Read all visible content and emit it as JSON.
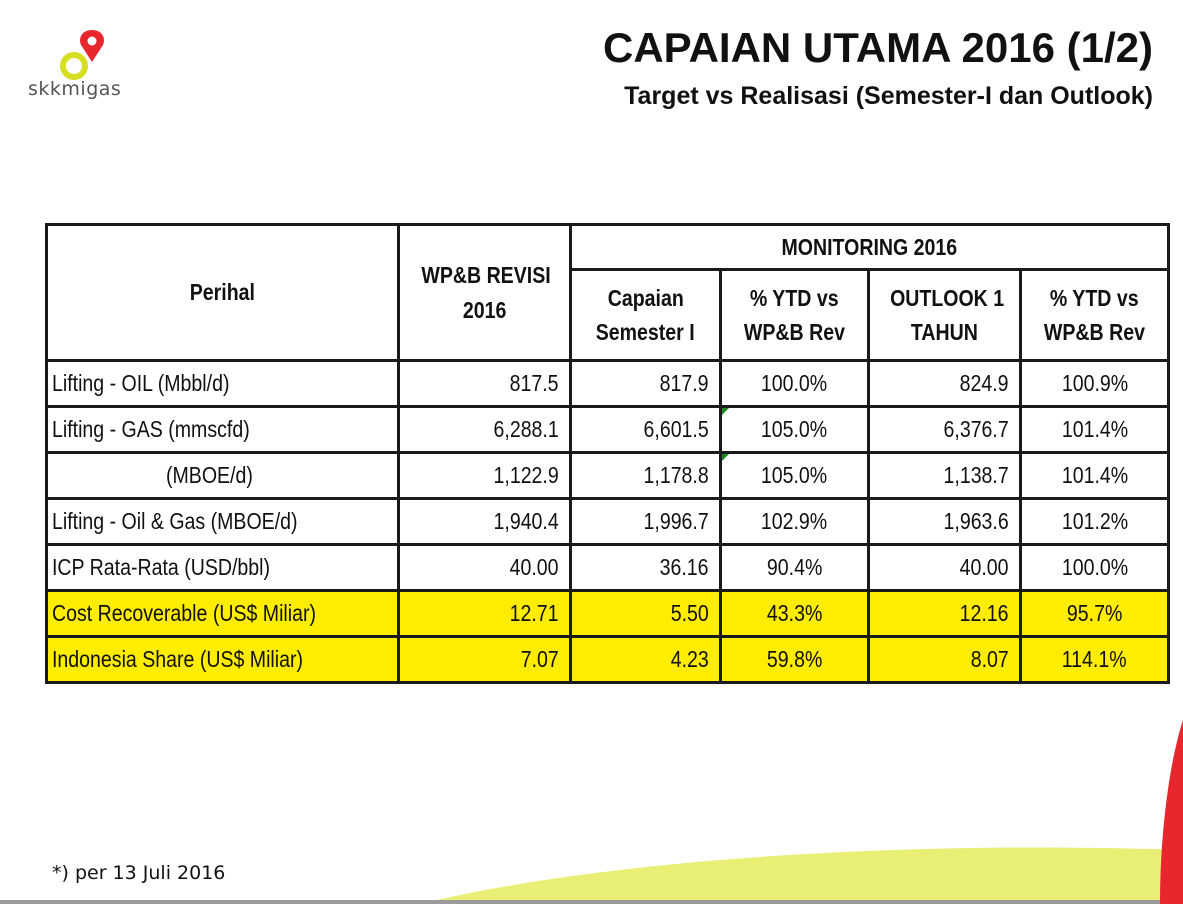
{
  "logo": {
    "text": "skkmigas"
  },
  "header": {
    "title": "CAPAIAN UTAMA 2016 (1/2)",
    "subtitle": "Target vs Realisasi (Semester-I dan Outlook)"
  },
  "table": {
    "headers": {
      "perihal": "Perihal",
      "wpb_line1": "WP&B REVISI",
      "wpb_line2": "2016",
      "monitoring": "MONITORING 2016",
      "capaian_line1": "Capaian",
      "capaian_line2": "Semester I",
      "ytd1_line1": "% YTD vs",
      "ytd1_line2": "WP&B Rev",
      "outlook_line1": "OUTLOOK 1",
      "outlook_line2": "TAHUN",
      "ytd2_line1": "% YTD vs",
      "ytd2_line2": "WP&B Rev"
    },
    "rows": [
      {
        "label": "Lifting - OIL (Mbbl/d)",
        "wpb": "817.5",
        "capaian": "817.9",
        "ytd1": "100.0%",
        "outlook": "824.9",
        "ytd2": "100.9%"
      },
      {
        "label": "Lifting - GAS (mmscfd)",
        "wpb": "6,288.1",
        "capaian": "6,601.5",
        "ytd1": "105.0%",
        "outlook": "6,376.7",
        "ytd2": "101.4%"
      },
      {
        "label": "(MBOE/d)",
        "wpb": "1,122.9",
        "capaian": "1,178.8",
        "ytd1": "105.0%",
        "outlook": "1,138.7",
        "ytd2": "101.4%"
      },
      {
        "label": "Lifting - Oil & Gas (MBOE/d)",
        "wpb": "1,940.4",
        "capaian": "1,996.7",
        "ytd1": "102.9%",
        "outlook": "1,963.6",
        "ytd2": "101.2%"
      },
      {
        "label": "ICP Rata-Rata (USD/bbl)",
        "wpb": "40.00",
        "capaian": "36.16",
        "ytd1": "90.4%",
        "outlook": "40.00",
        "ytd2": "100.0%"
      },
      {
        "label": "Cost Recoverable (US$ Miliar)",
        "wpb": "12.71",
        "capaian": "5.50",
        "ytd1": "43.3%",
        "outlook": "12.16",
        "ytd2": "95.7%"
      },
      {
        "label": "Indonesia Share (US$ Miliar)",
        "wpb": "7.07",
        "capaian": "4.23",
        "ytd1": "59.8%",
        "outlook": "8.07",
        "ytd2": "114.1%"
      }
    ]
  },
  "footnote": "*) per 13 Juli 2016",
  "colors": {
    "highlight": "#ffed00",
    "logo_red": "#e8262d",
    "logo_yellow": "#d6df23",
    "swoosh_yellow": "#e4ec5c",
    "swoosh_red": "#e8262d"
  }
}
